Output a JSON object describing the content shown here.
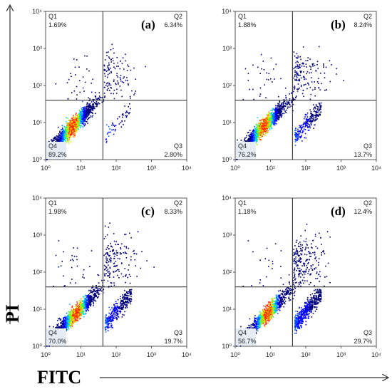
{
  "figure": {
    "y_axis_title": "PI",
    "x_axis_title": "FITC"
  },
  "chart_data": [
    {
      "type": "scatter",
      "panel_label": "(a)",
      "xscale": "log",
      "yscale": "log",
      "xlim": [
        1,
        10000
      ],
      "ylim": [
        1,
        10000
      ],
      "x_ticks": [
        "10⁰",
        "10¹",
        "10²",
        "10³",
        "10⁴"
      ],
      "y_ticks": [
        "10⁰",
        "10¹",
        "10²",
        "10³",
        "10⁴"
      ],
      "gate": {
        "x": 42,
        "y": 40
      },
      "quadrants": [
        {
          "name": "Q1",
          "percent": "1.69%"
        },
        {
          "name": "Q2",
          "percent": "6.34%"
        },
        {
          "name": "Q3",
          "percent": "2.80%"
        },
        {
          "name": "Q4",
          "percent": "89.2%"
        }
      ]
    },
    {
      "type": "scatter",
      "panel_label": "(b)",
      "xscale": "log",
      "yscale": "log",
      "xlim": [
        1,
        10000
      ],
      "ylim": [
        1,
        10000
      ],
      "x_ticks": [
        "10⁰",
        "10¹",
        "10²",
        "10³",
        "10⁴"
      ],
      "y_ticks": [
        "10⁰",
        "10¹",
        "10²",
        "10³",
        "10⁴"
      ],
      "gate": {
        "x": 42,
        "y": 40
      },
      "quadrants": [
        {
          "name": "Q1",
          "percent": "1.88%"
        },
        {
          "name": "Q2",
          "percent": "8.24%"
        },
        {
          "name": "Q3",
          "percent": "13.7%"
        },
        {
          "name": "Q4",
          "percent": "76.2%"
        }
      ]
    },
    {
      "type": "scatter",
      "panel_label": "(c)",
      "xscale": "log",
      "yscale": "log",
      "xlim": [
        1,
        10000
      ],
      "ylim": [
        1,
        10000
      ],
      "x_ticks": [
        "10⁰",
        "10¹",
        "10²",
        "10³",
        "10⁴"
      ],
      "y_ticks": [
        "10⁰",
        "10¹",
        "10²",
        "10³",
        "10⁴"
      ],
      "gate": {
        "x": 42,
        "y": 40
      },
      "quadrants": [
        {
          "name": "Q1",
          "percent": "1.98%"
        },
        {
          "name": "Q2",
          "percent": "8.33%"
        },
        {
          "name": "Q3",
          "percent": "19.7%"
        },
        {
          "name": "Q4",
          "percent": "70.0%"
        }
      ]
    },
    {
      "type": "scatter",
      "panel_label": "(d)",
      "xscale": "log",
      "yscale": "log",
      "xlim": [
        1,
        10000
      ],
      "ylim": [
        1,
        10000
      ],
      "x_ticks": [
        "10⁰",
        "10¹",
        "10²",
        "10³",
        "10⁴"
      ],
      "y_ticks": [
        "10⁰",
        "10¹",
        "10²",
        "10³",
        "10⁴"
      ],
      "gate": {
        "x": 42,
        "y": 40
      },
      "quadrants": [
        {
          "name": "Q1",
          "percent": "1.18%"
        },
        {
          "name": "Q2",
          "percent": "12.4%"
        },
        {
          "name": "Q3",
          "percent": "29.7%"
        },
        {
          "name": "Q4",
          "percent": "56.7%"
        }
      ]
    }
  ]
}
